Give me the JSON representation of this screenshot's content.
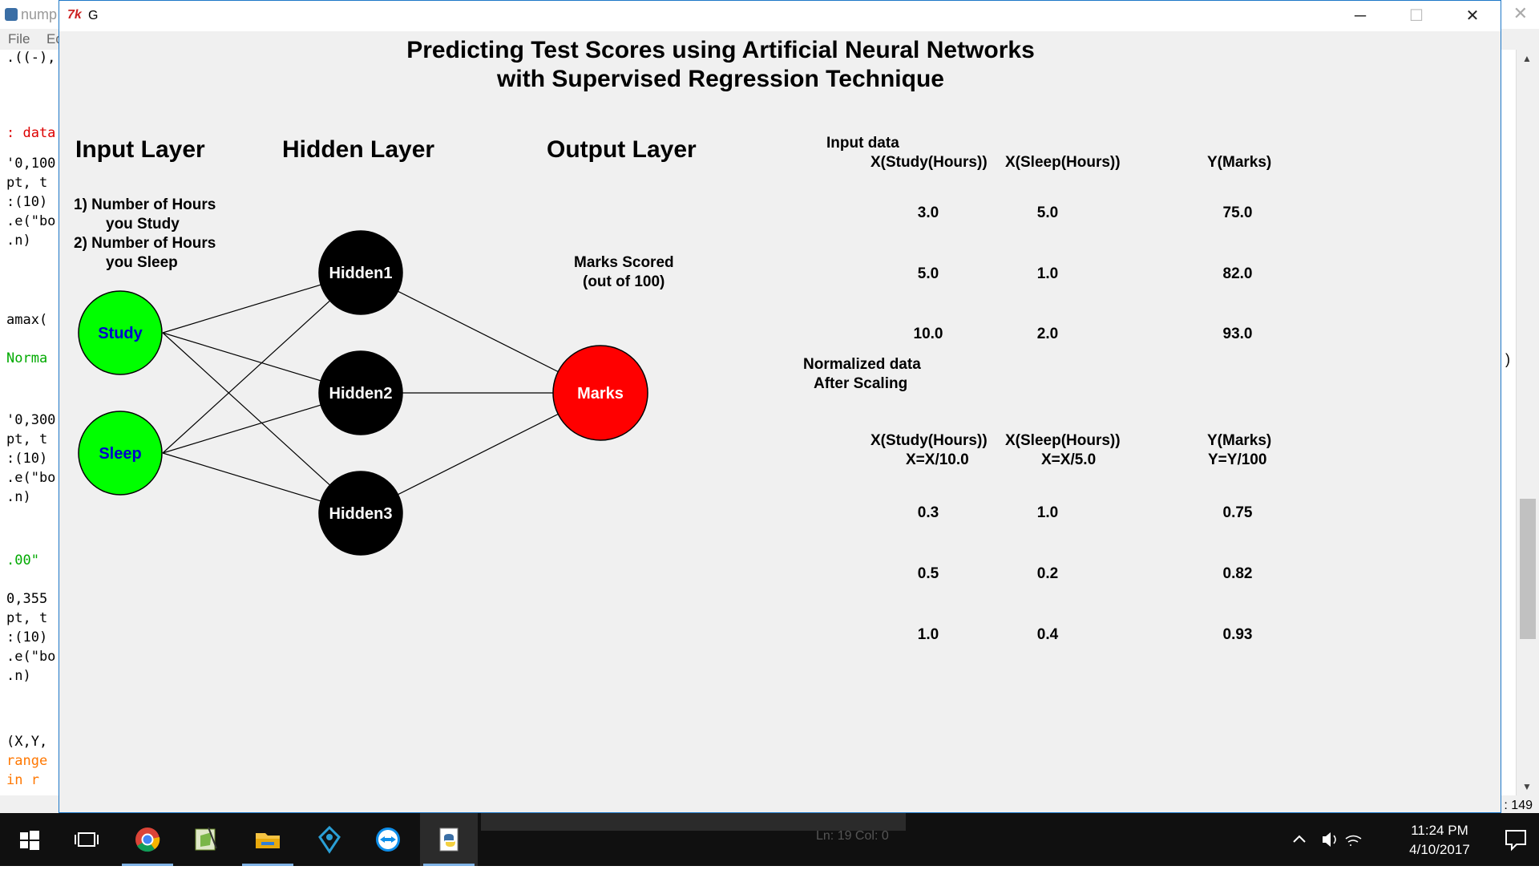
{
  "background_window": {
    "title": "nump",
    "menu": [
      "File",
      "Ed"
    ],
    "code_lines": [
      {
        "text": ".((-),",
        "style": "normal"
      },
      {
        "text": ": data",
        "style": "cmt"
      },
      {
        "text": "'0,100",
        "style": "normal"
      },
      {
        "text": "pt, t",
        "style": "normal"
      },
      {
        "text": ":(10)",
        "style": "normal"
      },
      {
        "text": ".e(\"bo",
        "style": "normal"
      },
      {
        "text": ".n)",
        "style": "normal"
      },
      {
        "text": "amax(",
        "style": "normal"
      },
      {
        "text": "Norma",
        "style": "grn"
      },
      {
        "text": "'0,300",
        "style": "normal"
      },
      {
        "text": "pt, t",
        "style": "normal"
      },
      {
        "text": ":(10)",
        "style": "normal"
      },
      {
        "text": ".e(\"bo",
        "style": "normal"
      },
      {
        "text": ".n)",
        "style": "normal"
      },
      {
        "text": ".00\"",
        "style": "grn"
      },
      {
        "text": "0,355",
        "style": "normal"
      },
      {
        "text": "pt, t",
        "style": "normal"
      },
      {
        "text": ":(10)",
        "style": "normal"
      },
      {
        "text": ".e(\"bo",
        "style": "normal"
      },
      {
        "text": ".n)",
        "style": "normal"
      },
      {
        "text": "(X,Y,",
        "style": "normal"
      },
      {
        "text": "range",
        "style": "kw"
      },
      {
        "text": "in r",
        "style": "kw"
      }
    ],
    "right_paren": ")",
    "status_col": ": 149",
    "status_line": "Ln: 19   Col: 0"
  },
  "tk_window": {
    "title": "G",
    "icon": "tk-feather-icon"
  },
  "canvas": {
    "title_line1": "Predicting Test Scores using Artificial Neural Networks",
    "title_line2": "with Supervised Regression Technique",
    "input_layer_title": "Input Layer",
    "hidden_layer_title": "Hidden Layer",
    "output_layer_title": "Output Layer",
    "input_desc": [
      "1) Number of Hours",
      "you Study",
      "2) Number of Hours",
      "you Sleep"
    ],
    "output_desc": [
      "Marks Scored",
      "(out of 100)"
    ],
    "nodes": {
      "study": "Study",
      "sleep": "Sleep",
      "hidden1": "Hidden1",
      "hidden2": "Hidden2",
      "hidden3": "Hidden3",
      "marks": "Marks"
    },
    "colors": {
      "input_fill": "#00ff00",
      "input_text": "#0000cc",
      "hidden_fill": "#000000",
      "output_fill": "#ff0000",
      "node_text": "#ffffff"
    },
    "input_data": {
      "label": "Input data",
      "headers": [
        "X(Study(Hours))",
        "X(Sleep(Hours))",
        "Y(Marks)"
      ],
      "rows": [
        [
          "3.0",
          "5.0",
          "75.0"
        ],
        [
          "5.0",
          "1.0",
          "82.0"
        ],
        [
          "10.0",
          "2.0",
          "93.0"
        ]
      ]
    },
    "normalized_data": {
      "label_line1": "Normalized data",
      "label_line2": "After Scaling",
      "headers": [
        [
          "X(Study(Hours))",
          "X=X/10.0"
        ],
        [
          "X(Sleep(Hours))",
          "X=X/5.0"
        ],
        [
          "Y(Marks)",
          "Y=Y/100"
        ]
      ],
      "rows": [
        [
          "0.3",
          "1.0",
          "0.75"
        ],
        [
          "0.5",
          "0.2",
          "0.82"
        ],
        [
          "1.0",
          "0.4",
          "0.93"
        ]
      ]
    }
  },
  "taskbar": {
    "apps": [
      "start-icon",
      "task-view-icon",
      "chrome-icon",
      "notepad-plus-icon",
      "file-explorer-icon",
      "sourcetree-icon",
      "teamviewer-icon",
      "python-idle-icon"
    ],
    "time": "11:24 PM",
    "date": "4/10/2017"
  }
}
